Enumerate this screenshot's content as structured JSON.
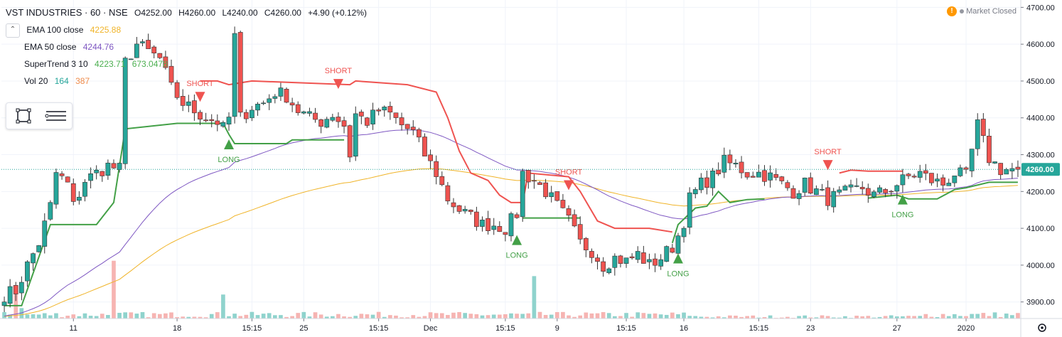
{
  "header": {
    "symbol_title": "VST INDUSTRIES · 60 · NSE",
    "open": "O4252.00",
    "high": "H4260.00",
    "low": "L4240.00",
    "close": "C4260.00",
    "change": "+4.90 (+0.12%)"
  },
  "indicators": [
    {
      "label": "EMA 100 close",
      "values": [
        "4225.88"
      ],
      "colors": [
        "#f0b429"
      ]
    },
    {
      "label": "EMA 50 close",
      "values": [
        "4244.76"
      ],
      "colors": [
        "#7e57c2"
      ]
    },
    {
      "label": "SuperTrend 3 10",
      "values": [
        "4223.71",
        "673.0478"
      ],
      "colors": [
        "#4caf50",
        "#4caf50"
      ]
    },
    {
      "label": "Vol 20",
      "values": [
        "164",
        "387"
      ],
      "colors": [
        "#26a69a",
        "#ef8c4c"
      ]
    }
  ],
  "status": {
    "market": "Market Closed",
    "warning_icon": "exclamation-icon"
  },
  "toolbar": {
    "icons": [
      "rectangle-tool-icon",
      "lines-tool-icon"
    ]
  },
  "colors": {
    "up": "#26a69a",
    "down": "#ef5350",
    "ema100": "#f0b429",
    "ema50": "#7e57c2",
    "st_up": "#43a047",
    "st_down": "#ef5350",
    "volume_up": "#8fd3cd",
    "volume_down": "#f6b4b2",
    "last_price": "#26a69a"
  },
  "chart_data": {
    "type": "candlestick",
    "y_range": [
      3855,
      4720
    ],
    "price_ticks": [
      3900,
      4000,
      4100,
      4200,
      4300,
      4400,
      4500,
      4600,
      4700
    ],
    "price_tick_labels": [
      "3900.00",
      "4000.00",
      "4100.00",
      "4200.00",
      "4300.00",
      "4400.00",
      "4500.00",
      "4600.00",
      "4700.00"
    ],
    "last_price": 4260.0,
    "last_price_label": "4260.00",
    "x_ticks": [
      {
        "label": "11",
        "bar": 12
      },
      {
        "label": "18",
        "bar": 30
      },
      {
        "label": "15:15",
        "bar": 43
      },
      {
        "label": "25",
        "bar": 52
      },
      {
        "label": "15:15",
        "bar": 65
      },
      {
        "label": "Dec",
        "bar": 74
      },
      {
        "label": "15:15",
        "bar": 87
      },
      {
        "label": "9",
        "bar": 96
      },
      {
        "label": "15:15",
        "bar": 108
      },
      {
        "label": "16",
        "bar": 118
      },
      {
        "label": "15:15",
        "bar": 131
      },
      {
        "label": "23",
        "bar": 140
      },
      {
        "label": "27",
        "bar": 155
      },
      {
        "label": "2020",
        "bar": 167
      }
    ],
    "anchors": [
      [
        0,
        3920
      ],
      [
        2,
        3930
      ],
      [
        4,
        4000
      ],
      [
        6,
        4060
      ],
      [
        8,
        4160
      ],
      [
        9,
        4250
      ],
      [
        11,
        4220
      ],
      [
        12,
        4160
      ],
      [
        14,
        4230
      ],
      [
        16,
        4250
      ],
      [
        18,
        4270
      ],
      [
        20,
        4260
      ],
      [
        21,
        4550
      ],
      [
        23,
        4600
      ],
      [
        25,
        4580
      ],
      [
        27,
        4560
      ],
      [
        29,
        4480
      ],
      [
        31,
        4440
      ],
      [
        33,
        4420
      ],
      [
        35,
        4400
      ],
      [
        37,
        4390
      ],
      [
        38,
        4370
      ],
      [
        39,
        4400
      ],
      [
        40,
        4620
      ],
      [
        41,
        4400
      ],
      [
        43,
        4430
      ],
      [
        45,
        4440
      ],
      [
        47,
        4470
      ],
      [
        49,
        4460
      ],
      [
        51,
        4420
      ],
      [
        53,
        4400
      ],
      [
        55,
        4390
      ],
      [
        57,
        4410
      ],
      [
        59,
        4380
      ],
      [
        60,
        4300
      ],
      [
        61,
        4410
      ],
      [
        63,
        4390
      ],
      [
        65,
        4420
      ],
      [
        67,
        4410
      ],
      [
        69,
        4380
      ],
      [
        71,
        4360
      ],
      [
        73,
        4300
      ],
      [
        75,
        4250
      ],
      [
        77,
        4180
      ],
      [
        79,
        4150
      ],
      [
        81,
        4130
      ],
      [
        83,
        4110
      ],
      [
        85,
        4110
      ],
      [
        87,
        4100
      ],
      [
        89,
        4140
      ],
      [
        90,
        4250
      ],
      [
        92,
        4230
      ],
      [
        94,
        4200
      ],
      [
        96,
        4160
      ],
      [
        98,
        4120
      ],
      [
        100,
        4060
      ],
      [
        102,
        4040
      ],
      [
        104,
        4000
      ],
      [
        106,
        4020
      ],
      [
        108,
        4010
      ],
      [
        110,
        4030
      ],
      [
        112,
        4000
      ],
      [
        114,
        4020
      ],
      [
        116,
        4050
      ],
      [
        117,
        4080
      ],
      [
        118,
        4120
      ],
      [
        119,
        4180
      ],
      [
        121,
        4220
      ],
      [
        123,
        4240
      ],
      [
        125,
        4280
      ],
      [
        127,
        4270
      ],
      [
        129,
        4250
      ],
      [
        131,
        4250
      ],
      [
        133,
        4240
      ],
      [
        135,
        4220
      ],
      [
        137,
        4200
      ],
      [
        139,
        4220
      ],
      [
        141,
        4200
      ],
      [
        143,
        4180
      ],
      [
        145,
        4190
      ],
      [
        147,
        4200
      ],
      [
        149,
        4210
      ],
      [
        151,
        4190
      ],
      [
        153,
        4200
      ],
      [
        155,
        4220
      ],
      [
        157,
        4240
      ],
      [
        159,
        4250
      ],
      [
        161,
        4230
      ],
      [
        163,
        4220
      ],
      [
        165,
        4250
      ],
      [
        167,
        4240
      ],
      [
        169,
        4380
      ],
      [
        171,
        4290
      ],
      [
        173,
        4260
      ],
      [
        175,
        4260
      ],
      [
        176,
        4260
      ]
    ],
    "volume_spikes": [
      [
        2,
        3
      ],
      [
        3,
        1
      ],
      [
        19,
        7
      ],
      [
        38,
        3
      ],
      [
        92,
        5
      ]
    ],
    "supertrend_up": [
      [
        0,
        3890
      ],
      [
        3,
        3890
      ],
      [
        8,
        4110
      ],
      [
        16,
        4110
      ],
      [
        19,
        4170
      ],
      [
        21,
        4370
      ],
      [
        30,
        4385
      ],
      [
        38,
        4385
      ],
      [
        39,
        4355
      ],
      [
        40,
        4330
      ],
      [
        49,
        4330
      ],
      [
        50,
        4340
      ],
      [
        59,
        4340
      ],
      [
        90,
        4128
      ],
      [
        100,
        4128
      ],
      [
        116,
        4060
      ],
      [
        117,
        4110
      ],
      [
        120,
        4155
      ],
      [
        122,
        4160
      ],
      [
        124,
        4200
      ],
      [
        126,
        4170
      ],
      [
        129,
        4178
      ],
      [
        132,
        4180
      ],
      [
        150,
        4182
      ],
      [
        155,
        4190
      ],
      [
        157,
        4180
      ],
      [
        162,
        4180
      ],
      [
        165,
        4205
      ],
      [
        167,
        4210
      ],
      [
        171,
        4225
      ],
      [
        176,
        4225
      ]
    ],
    "supertrend_down": [
      [
        34,
        4500
      ],
      [
        37,
        4500
      ],
      [
        39,
        4490
      ],
      [
        43,
        4500
      ],
      [
        60,
        4490
      ],
      [
        61,
        4500
      ],
      [
        70,
        4490
      ],
      [
        75,
        4470
      ],
      [
        77,
        4400
      ],
      [
        79,
        4310
      ],
      [
        81,
        4250
      ],
      [
        84,
        4230
      ],
      [
        86,
        4190
      ],
      [
        88,
        4170
      ],
      [
        90,
        4170
      ],
      [
        91,
        4250
      ],
      [
        98,
        4240
      ],
      [
        100,
        4200
      ],
      [
        103,
        4120
      ],
      [
        106,
        4100
      ],
      [
        112,
        4100
      ],
      [
        116,
        4090
      ],
      [
        145,
        4250
      ],
      [
        147,
        4258
      ],
      [
        150,
        4255
      ],
      [
        156,
        4255
      ]
    ],
    "signals": [
      {
        "label": "SHORT",
        "bar": 34,
        "price": 4455,
        "dir": "short"
      },
      {
        "label": "LONG",
        "bar": 39,
        "price": 4330,
        "dir": "long"
      },
      {
        "label": "SHORT",
        "bar": 58,
        "price": 4490,
        "dir": "short"
      },
      {
        "label": "LONG",
        "bar": 89,
        "price": 4070,
        "dir": "long"
      },
      {
        "label": "SHORT",
        "bar": 98,
        "price": 4215,
        "dir": "short"
      },
      {
        "label": "LONG",
        "bar": 117,
        "price": 4020,
        "dir": "long"
      },
      {
        "label": "SHORT",
        "bar": 143,
        "price": 4270,
        "dir": "short"
      },
      {
        "label": "LONG",
        "bar": 156,
        "price": 4180,
        "dir": "long"
      }
    ]
  }
}
